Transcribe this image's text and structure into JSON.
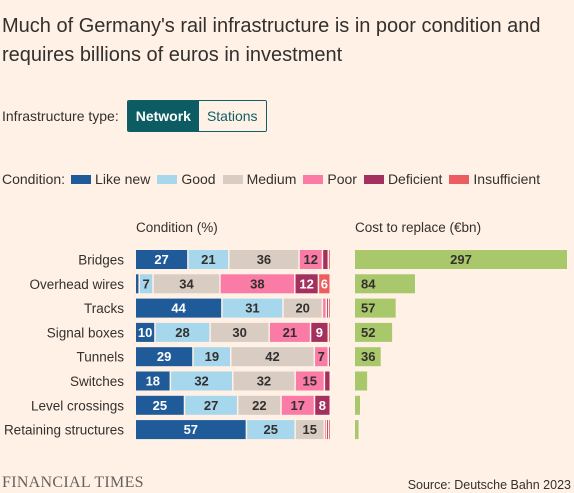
{
  "title": "Much of Germany's rail infrastructure is in poor condition and requires billions of euros in investment",
  "toggle": {
    "label": "Infrastructure type:",
    "options": [
      "Network",
      "Stations"
    ],
    "selected": "Network"
  },
  "legend": {
    "title": "Condition:",
    "items": [
      {
        "name": "Like new",
        "color": "#1f5a99"
      },
      {
        "name": "Good",
        "color": "#a7d7ec"
      },
      {
        "name": "Medium",
        "color": "#d9ccc3"
      },
      {
        "name": "Poor",
        "color": "#f97ba6"
      },
      {
        "name": "Deficient",
        "color": "#a3305e"
      },
      {
        "name": "Insufficient",
        "color": "#ec5d62"
      }
    ]
  },
  "columns": {
    "condition": "Condition (%)",
    "cost": "Cost to replace (€bn)"
  },
  "chart_data": {
    "type": "bar",
    "categories": [
      "Bridges",
      "Overhead wires",
      "Tracks",
      "Signal boxes",
      "Tunnels",
      "Switches",
      "Level crossings",
      "Retaining structures"
    ],
    "series": [
      {
        "name": "Like new",
        "values": [
          27,
          2,
          44,
          10,
          29,
          18,
          25,
          57
        ]
      },
      {
        "name": "Good",
        "values": [
          21,
          7,
          31,
          28,
          19,
          32,
          27,
          25
        ]
      },
      {
        "name": "Medium",
        "values": [
          36,
          34,
          20,
          30,
          42,
          32,
          22,
          15
        ]
      },
      {
        "name": "Poor",
        "values": [
          12,
          38,
          2,
          21,
          7,
          15,
          17,
          1
        ]
      },
      {
        "name": "Deficient",
        "values": [
          3,
          12,
          1,
          9,
          1,
          3,
          8,
          1
        ]
      },
      {
        "name": "Insufficient",
        "values": [
          1,
          6,
          1,
          1,
          0,
          0,
          0,
          1
        ]
      }
    ],
    "labels_shown": [
      [
        "27",
        "21",
        "36",
        "12",
        "",
        ""
      ],
      [
        "",
        "7",
        "34",
        "38",
        "12",
        "6"
      ],
      [
        "44",
        "31",
        "20",
        "",
        "",
        ""
      ],
      [
        "10",
        "28",
        "30",
        "21",
        "9",
        ""
      ],
      [
        "29",
        "19",
        "42",
        "7",
        "",
        ""
      ],
      [
        "18",
        "32",
        "32",
        "15",
        "",
        ""
      ],
      [
        "25",
        "27",
        "22",
        "17",
        "8",
        ""
      ],
      [
        "57",
        "25",
        "15",
        "",
        "",
        ""
      ]
    ],
    "cost": {
      "values": [
        297,
        84,
        57,
        52,
        36,
        17,
        7,
        5
      ],
      "labels_shown": [
        "297",
        "84",
        "57",
        "52",
        "36",
        "",
        "",
        ""
      ],
      "color": "#a9c86b"
    }
  },
  "footer": {
    "logo": "FINANCIAL TIMES",
    "source": "Source: Deutsche Bahn 2023"
  }
}
